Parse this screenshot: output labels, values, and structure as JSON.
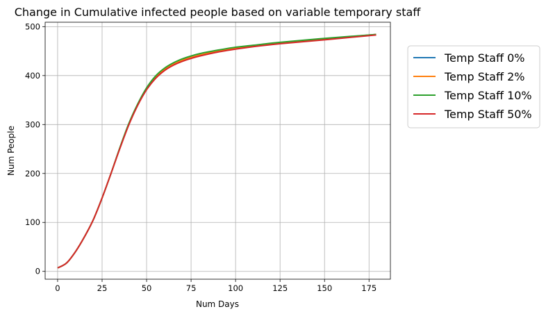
{
  "chart_data": {
    "type": "line",
    "title": "Change in Cumulative infected people based on variable temporary staff",
    "xlabel": "Num Days",
    "ylabel": "Num People",
    "xlim": [
      -7,
      187
    ],
    "ylim": [
      -16,
      509
    ],
    "xticks": [
      0,
      25,
      50,
      75,
      100,
      125,
      150,
      175
    ],
    "yticks": [
      0,
      100,
      200,
      300,
      400,
      500
    ],
    "grid": true,
    "legend_position": "outside-right",
    "series": [
      {
        "name": "Temp Staff 0%",
        "color": "#1f77b4",
        "x": [
          0,
          5,
          10,
          15,
          20,
          25,
          30,
          35,
          40,
          45,
          50,
          55,
          60,
          65,
          70,
          75,
          80,
          90,
          100,
          110,
          125,
          150,
          179
        ],
        "y": [
          7,
          17,
          40,
          70,
          105,
          150,
          200,
          252,
          300,
          340,
          372,
          396,
          412,
          423,
          431,
          437,
          442,
          450,
          456,
          461,
          467,
          475,
          484
        ]
      },
      {
        "name": "Temp Staff 2%",
        "color": "#ff7f0e",
        "x": [
          0,
          5,
          10,
          15,
          20,
          25,
          30,
          35,
          40,
          45,
          50,
          55,
          60,
          65,
          70,
          75,
          80,
          90,
          100,
          110,
          125,
          150,
          179
        ],
        "y": [
          7,
          17,
          40,
          70,
          105,
          150,
          200,
          252,
          300,
          340,
          372,
          396,
          412,
          423,
          431,
          437,
          442,
          450,
          456,
          461,
          467,
          475,
          484
        ]
      },
      {
        "name": "Temp Staff 10%",
        "color": "#2ca02c",
        "x": [
          0,
          5,
          10,
          15,
          20,
          25,
          30,
          35,
          40,
          45,
          50,
          55,
          60,
          65,
          70,
          75,
          80,
          90,
          100,
          110,
          125,
          150,
          179
        ],
        "y": [
          7,
          17,
          40,
          70,
          105,
          150,
          200,
          253,
          302,
          342,
          375,
          399,
          415,
          426,
          434,
          440,
          445,
          452,
          458,
          462,
          468,
          476,
          484
        ]
      },
      {
        "name": "Temp Staff 50%",
        "color": "#d62728",
        "x": [
          0,
          5,
          10,
          15,
          20,
          25,
          30,
          35,
          40,
          45,
          50,
          55,
          60,
          65,
          70,
          75,
          80,
          90,
          100,
          110,
          125,
          150,
          179
        ],
        "y": [
          7,
          17,
          40,
          70,
          105,
          150,
          200,
          251,
          299,
          339,
          371,
          394,
          410,
          421,
          429,
          435,
          440,
          448,
          454,
          459,
          465,
          473,
          483
        ]
      }
    ]
  }
}
